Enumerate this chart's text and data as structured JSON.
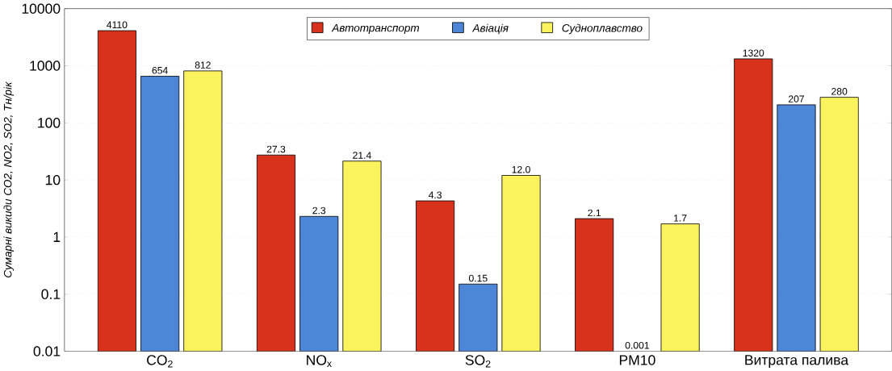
{
  "chart_data": {
    "type": "bar",
    "ylabel": "Сумарні викиди CO2, NO2, SO2, Тн/рік",
    "categories": [
      "CO$_{2}$",
      "NO$_{x}$",
      "SO$_{2}$",
      "PM10",
      "Витрата палива"
    ],
    "series": [
      {
        "name": "Автотранспорт",
        "color": "#d8321c",
        "values": [
          4110,
          27.3,
          4.3,
          2.1,
          1320
        ],
        "value_labels": [
          "4110",
          "27.3",
          "4.3",
          "2.1",
          "1320"
        ]
      },
      {
        "name": "Авіація",
        "color": "#4d86d6",
        "values": [
          654,
          2.3,
          0.15,
          null,
          207
        ],
        "value_labels": [
          "654",
          "2.3",
          "0.15",
          "0.001",
          "207"
        ]
      },
      {
        "name": "Судноплавство",
        "color": "#fbf35e",
        "values": [
          812,
          21.4,
          12.0,
          1.7,
          280
        ],
        "value_labels": [
          "812",
          "21.4",
          "12.0",
          "1.7",
          "280"
        ]
      }
    ],
    "log": true,
    "ylim": [
      0.01,
      10000
    ],
    "yticks": [
      {
        "value": 0.01,
        "label": "0.01"
      },
      {
        "value": 0.1,
        "label": "0.1"
      },
      1,
      10,
      100,
      1000,
      10000
    ],
    "grid": "y",
    "legend": "top"
  }
}
